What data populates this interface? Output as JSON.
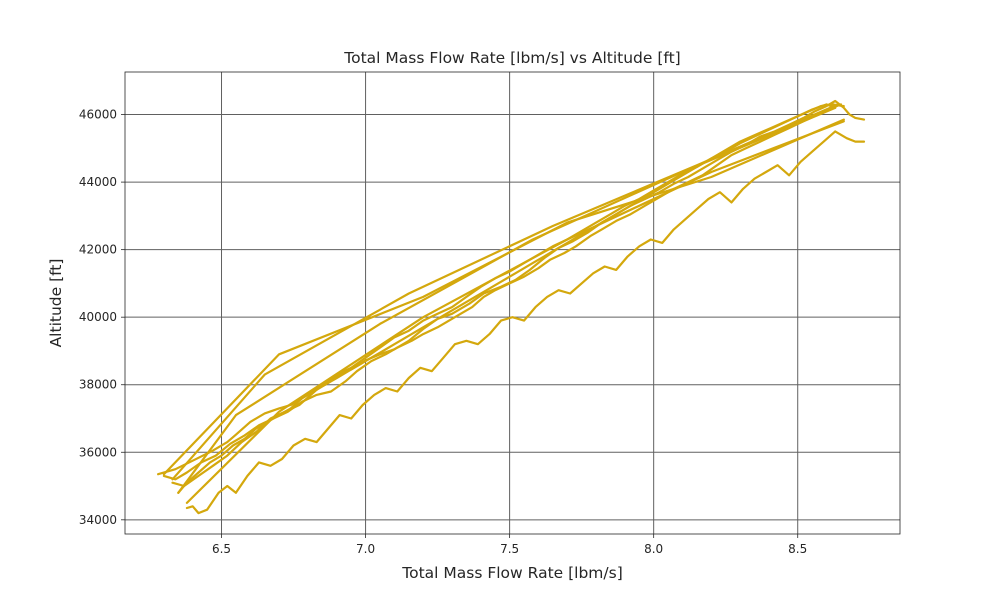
{
  "chart_data": {
    "type": "line",
    "title": "Total Mass Flow Rate [lbm/s] vs Altitude [ft]",
    "xlabel": "Total Mass Flow Rate [lbm/s]",
    "ylabel": "Altitude [ft]",
    "xlim": [
      6.165,
      8.855
    ],
    "ylim": [
      33580,
      47260
    ],
    "xticks": [
      6.5,
      7.0,
      7.5,
      8.0,
      8.5
    ],
    "xtick_labels": [
      "6.5",
      "7.0",
      "7.5",
      "8.0",
      "8.5"
    ],
    "yticks": [
      34000,
      36000,
      38000,
      40000,
      42000,
      44000,
      46000
    ],
    "ytick_labels": [
      "34000",
      "36000",
      "38000",
      "40000",
      "42000",
      "44000",
      "46000"
    ],
    "grid": true,
    "colors": {
      "series": "#d4a80d",
      "grid": "#606060",
      "spine": "#262626"
    },
    "series": [
      {
        "x": [
          6.28,
          6.34,
          6.4,
          6.47,
          6.52,
          6.55,
          6.6,
          6.65,
          6.7,
          6.74,
          6.78,
          6.82,
          6.86,
          6.91,
          6.95,
          7.0,
          7.05,
          7.1,
          7.15,
          7.2,
          7.25,
          7.3,
          7.36,
          7.41,
          7.47,
          7.52,
          7.57,
          7.62,
          7.67,
          7.72,
          7.77,
          7.82,
          7.87,
          7.92,
          7.97,
          8.02,
          8.07,
          8.12,
          8.17,
          8.22,
          8.27,
          8.32,
          8.37,
          8.42,
          8.47,
          8.52,
          8.56,
          8.6,
          8.63,
          8.66,
          8.68,
          8.7,
          8.73
        ],
        "y": [
          35350,
          35500,
          35750,
          36050,
          36300,
          36520,
          36900,
          37150,
          37300,
          37400,
          37600,
          37850,
          38000,
          38300,
          38450,
          38720,
          38900,
          39050,
          39300,
          39650,
          39950,
          40100,
          40400,
          40700,
          40900,
          41100,
          41400,
          41750,
          42050,
          42250,
          42500,
          42800,
          43050,
          43300,
          43500,
          43700,
          43950,
          44150,
          44400,
          44650,
          44900,
          45100,
          45350,
          45500,
          45700,
          45900,
          46100,
          46250,
          46400,
          46200,
          46000,
          45900,
          45850
        ]
      },
      {
        "x": [
          8.66,
          8.2,
          7.7,
          7.2,
          6.7,
          6.3
        ],
        "y": [
          45850,
          44150,
          42800,
          40600,
          38900,
          35350
        ]
      },
      {
        "x": [
          6.3,
          6.34,
          6.38,
          6.43,
          6.48,
          6.53,
          6.58,
          6.63,
          6.68,
          6.73,
          6.78,
          6.83,
          6.88,
          6.93,
          6.97,
          7.02,
          7.07,
          7.11,
          7.16,
          7.2,
          7.25,
          7.29,
          7.33,
          7.37,
          7.41,
          7.45,
          7.5,
          7.55,
          7.6,
          7.64,
          7.69,
          7.73,
          7.78,
          7.82,
          7.87,
          7.92,
          7.97,
          8.02,
          8.07,
          8.12,
          8.17,
          8.22,
          8.27,
          8.32,
          8.37,
          8.42,
          8.47,
          8.52,
          8.57,
          8.62,
          8.65
        ],
        "y": [
          35300,
          35200,
          35400,
          35700,
          35900,
          36250,
          36500,
          36800,
          37000,
          37200,
          37500,
          37700,
          37800,
          38100,
          38400,
          38700,
          38900,
          39100,
          39300,
          39500,
          39700,
          39900,
          40100,
          40300,
          40600,
          40800,
          41000,
          41200,
          41450,
          41700,
          41900,
          42100,
          42400,
          42600,
          42850,
          43050,
          43300,
          43550,
          43800,
          44000,
          44200,
          44500,
          44800,
          45000,
          45200,
          45400,
          45600,
          45800,
          46000,
          46200,
          46300
        ]
      },
      {
        "x": [
          8.64,
          8.15,
          7.65,
          7.15,
          6.65,
          6.33
        ],
        "y": [
          46300,
          44500,
          42700,
          40700,
          38300,
          35200
        ]
      },
      {
        "x": [
          6.33,
          6.37,
          6.42,
          6.47,
          6.52,
          6.57,
          6.62,
          6.67,
          6.72,
          6.77,
          6.81,
          6.85,
          6.9,
          6.95,
          7.0,
          7.05,
          7.1,
          7.15,
          7.2,
          7.25,
          7.3,
          7.35,
          7.4,
          7.45,
          7.5,
          7.55,
          7.6,
          7.65,
          7.7,
          7.75,
          7.8,
          7.85,
          7.9,
          7.95,
          8.0,
          8.05,
          8.1,
          8.15,
          8.2,
          8.25,
          8.3,
          8.35,
          8.4,
          8.45,
          8.5,
          8.55,
          8.6,
          8.63
        ],
        "y": [
          35100,
          35000,
          35300,
          35600,
          35900,
          36300,
          36600,
          37000,
          37200,
          37400,
          37700,
          38000,
          38300,
          38500,
          38800,
          39100,
          39400,
          39600,
          39900,
          40100,
          40300,
          40600,
          40900,
          41150,
          41350,
          41600,
          41850,
          42100,
          42300,
          42550,
          42800,
          43050,
          43300,
          43500,
          43750,
          44000,
          44250,
          44450,
          44700,
          44900,
          45150,
          45350,
          45550,
          45750,
          45950,
          46150,
          46300,
          46200
        ]
      },
      {
        "x": [
          8.63,
          8.1,
          7.58,
          7.05,
          6.55,
          6.35
        ],
        "y": [
          46200,
          44300,
          42300,
          39800,
          37100,
          34800
        ]
      },
      {
        "x": [
          6.35,
          6.38,
          6.42,
          6.46,
          6.5,
          6.54,
          6.58,
          6.62,
          6.66,
          6.7,
          6.74,
          6.78,
          6.82,
          6.86,
          6.9,
          6.94,
          6.98,
          7.02,
          7.06,
          7.1,
          7.14,
          7.18,
          7.22,
          7.26,
          7.3,
          7.34,
          7.38,
          7.42,
          7.46,
          7.5,
          7.54,
          7.58,
          7.62,
          7.66,
          7.7,
          7.74,
          7.78,
          7.82,
          7.86,
          7.9,
          7.94,
          7.98,
          8.02,
          8.06,
          8.1,
          8.14,
          8.18,
          8.22,
          8.26,
          8.3,
          8.34,
          8.38,
          8.42,
          8.46,
          8.5,
          8.54,
          8.58,
          8.62,
          8.66
        ],
        "y": [
          34800,
          35100,
          35400,
          35700,
          35900,
          36200,
          36400,
          36700,
          36900,
          37100,
          37300,
          37600,
          37800,
          38000,
          38200,
          38400,
          38600,
          38800,
          39000,
          39200,
          39400,
          39600,
          39800,
          40000,
          40200,
          40400,
          40600,
          40800,
          41000,
          41200,
          41400,
          41600,
          41800,
          42000,
          42200,
          42400,
          42600,
          42800,
          43000,
          43200,
          43400,
          43600,
          43800,
          44000,
          44200,
          44400,
          44600,
          44800,
          45000,
          45200,
          45350,
          45500,
          45650,
          45800,
          45950,
          46100,
          46250,
          46300,
          46250
        ]
      },
      {
        "x": [
          8.66,
          8.2,
          7.7,
          7.2,
          6.7,
          6.38
        ],
        "y": [
          45800,
          44300,
          42300,
          40000,
          37200,
          34500
        ]
      },
      {
        "x": [
          6.38,
          6.4,
          6.42,
          6.45,
          6.49,
          6.52,
          6.55,
          6.59,
          6.63,
          6.67,
          6.71,
          6.75,
          6.79,
          6.83,
          6.87,
          6.91,
          6.95,
          6.99,
          7.03,
          7.07,
          7.11,
          7.15,
          7.19,
          7.23,
          7.27,
          7.31,
          7.35,
          7.39,
          7.43,
          7.47,
          7.51,
          7.55,
          7.59,
          7.63,
          7.67,
          7.71,
          7.75,
          7.79,
          7.83,
          7.87,
          7.91,
          7.95,
          7.99,
          8.03,
          8.07,
          8.11,
          8.15,
          8.19,
          8.23,
          8.27,
          8.31,
          8.35,
          8.39,
          8.43,
          8.47,
          8.51,
          8.55,
          8.59,
          8.63,
          8.67,
          8.7,
          8.73
        ],
        "y": [
          34350,
          34400,
          34200,
          34300,
          34800,
          35000,
          34800,
          35300,
          35700,
          35600,
          35800,
          36200,
          36400,
          36300,
          36700,
          37100,
          37000,
          37400,
          37700,
          37900,
          37800,
          38200,
          38500,
          38400,
          38800,
          39200,
          39300,
          39200,
          39500,
          39900,
          40000,
          39900,
          40300,
          40600,
          40800,
          40700,
          41000,
          41300,
          41500,
          41400,
          41800,
          42100,
          42300,
          42200,
          42600,
          42900,
          43200,
          43500,
          43700,
          43400,
          43800,
          44100,
          44300,
          44500,
          44200,
          44600,
          44900,
          45200,
          45500,
          45300,
          45200,
          45200
        ]
      }
    ]
  }
}
